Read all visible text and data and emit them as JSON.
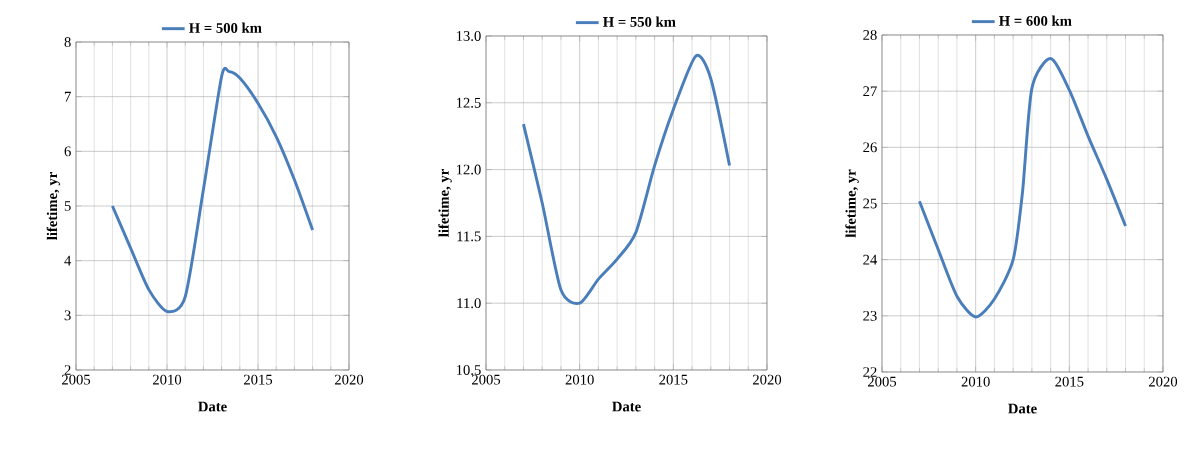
{
  "chart_data": [
    {
      "type": "line",
      "xlabel": "Date",
      "ylabel": "lifetime,  yr",
      "legend": "top",
      "grid": true,
      "xlim": [
        2005,
        2020
      ],
      "xticks": [
        2005,
        2010,
        2015,
        2020
      ],
      "ylim": [
        2,
        8
      ],
      "yticks": [
        2,
        3,
        4,
        5,
        6,
        7,
        8
      ],
      "x": [
        2007,
        2008,
        2009,
        2010,
        2011,
        2012,
        2013,
        2013.4,
        2014,
        2015,
        2016,
        2017,
        2018
      ],
      "series": [
        {
          "name": "H = 500 km",
          "color": "#4a7ebb",
          "values": [
            5.0,
            4.23,
            3.47,
            3.07,
            3.34,
            5.3,
            7.37,
            7.46,
            7.34,
            6.88,
            6.27,
            5.48,
            4.56
          ]
        }
      ]
    },
    {
      "type": "line",
      "xlabel": "Date",
      "ylabel": "lifetime,  yr",
      "legend": "top",
      "grid": true,
      "xlim": [
        2005,
        2020
      ],
      "xticks": [
        2005,
        2010,
        2015,
        2020
      ],
      "ylim": [
        10.5,
        13
      ],
      "yticks": [
        {
          "value": 10.5,
          "label": "10.5"
        },
        {
          "value": 11,
          "label": "11.0"
        },
        {
          "value": 11.5,
          "label": "11.5"
        },
        {
          "value": 12,
          "label": "12.0"
        },
        {
          "value": 12.5,
          "label": "12.5"
        },
        {
          "value": 13,
          "label": "13.0"
        }
      ],
      "x": [
        2007,
        2008,
        2009,
        2010,
        2011,
        2012,
        2013,
        2014,
        2015,
        2016.2,
        2017,
        2018
      ],
      "series": [
        {
          "name": "H = 550 km",
          "color": "#4a7ebb",
          "values": [
            12.34,
            11.75,
            11.1,
            11.0,
            11.18,
            11.33,
            11.53,
            12.03,
            12.45,
            12.85,
            12.68,
            12.03
          ]
        }
      ]
    },
    {
      "type": "line",
      "xlabel": "Date",
      "ylabel": "lifetime,  yr",
      "legend": "top",
      "grid": true,
      "xlim": [
        2005,
        2020
      ],
      "xticks": [
        2005,
        2010,
        2015,
        2020
      ],
      "ylim": [
        22,
        28
      ],
      "yticks": [
        22,
        23,
        24,
        25,
        26,
        27,
        28
      ],
      "x": [
        2007,
        2008,
        2009,
        2010,
        2011,
        2012,
        2012.5,
        2013,
        2014,
        2015,
        2016,
        2017,
        2018
      ],
      "series": [
        {
          "name": "H = 600 km",
          "color": "#4a7ebb",
          "values": [
            25.04,
            24.18,
            23.35,
            22.98,
            23.3,
            24.0,
            25.2,
            27.05,
            27.58,
            27.02,
            26.2,
            25.43,
            24.6
          ]
        }
      ]
    }
  ]
}
